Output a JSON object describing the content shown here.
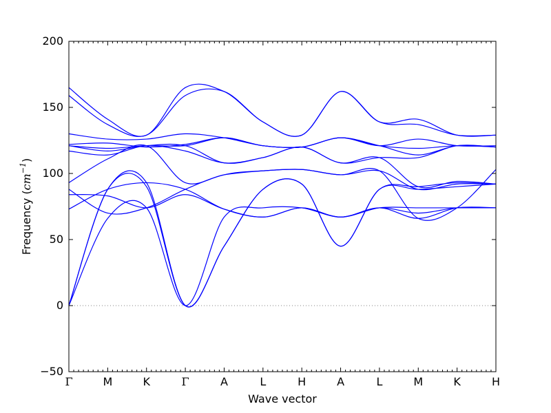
{
  "chart_data": {
    "type": "line",
    "xlabel": "Wave vector",
    "ylabel": {
      "text": "Frequency",
      "unit_open": " (",
      "unit_base": "cm",
      "unit_exp": "−1",
      "unit_close": ")"
    },
    "ylim": [
      -50,
      200
    ],
    "yticks": [
      {
        "value": -50,
        "label": "−50"
      },
      {
        "value": 0,
        "label": "0"
      },
      {
        "value": 50,
        "label": "50"
      },
      {
        "value": 100,
        "label": "100"
      },
      {
        "value": 150,
        "label": "150"
      },
      {
        "value": 200,
        "label": "200"
      }
    ],
    "high_symmetry_points": [
      "Γ",
      "M",
      "K",
      "Γ",
      "A",
      "L",
      "H",
      "A",
      "L",
      "M",
      "K",
      "H"
    ],
    "grid": false,
    "legend": "none",
    "zero_line": {
      "value": 0,
      "style": "dotted",
      "color": "#808080"
    },
    "line_color": "#0000ff",
    "series": [
      {
        "values": [
          [
            0,
            73
          ],
          [
            1,
            88
          ],
          [
            2,
            93
          ],
          [
            3,
            88
          ],
          [
            4,
            73
          ],
          [
            5,
            67
          ],
          [
            6,
            74
          ],
          [
            7,
            67
          ],
          [
            8,
            74
          ],
          [
            9,
            70
          ],
          [
            10,
            74
          ],
          [
            11,
            74
          ]
        ]
      },
      {
        "values": [
          [
            0,
            84
          ],
          [
            1,
            83
          ],
          [
            2,
            74
          ],
          [
            3,
            84
          ],
          [
            4,
            73
          ],
          [
            5,
            67
          ],
          [
            6,
            74
          ],
          [
            7,
            67
          ],
          [
            8,
            74
          ],
          [
            9,
            74
          ],
          [
            10,
            74
          ],
          [
            11,
            74
          ]
        ]
      },
      {
        "values": [
          [
            0,
            88
          ],
          [
            1,
            70
          ],
          [
            2,
            74
          ],
          [
            3,
            88
          ],
          [
            4,
            99
          ],
          [
            5,
            102
          ],
          [
            6,
            103
          ],
          [
            7,
            99
          ],
          [
            8,
            102
          ],
          [
            9,
            66
          ],
          [
            10,
            74
          ],
          [
            11,
            103
          ]
        ]
      },
      {
        "values": [
          [
            0,
            93
          ],
          [
            1,
            111
          ],
          [
            2,
            121
          ],
          [
            3,
            93
          ],
          [
            4,
            99
          ],
          [
            5,
            102
          ],
          [
            6,
            103
          ],
          [
            7,
            99
          ],
          [
            8,
            102
          ],
          [
            9,
            88
          ],
          [
            10,
            92
          ],
          [
            11,
            92
          ]
        ]
      },
      {
        "values": [
          [
            0,
            117
          ],
          [
            1,
            114
          ],
          [
            2,
            121
          ],
          [
            3,
            117
          ],
          [
            4,
            108
          ],
          [
            5,
            112
          ],
          [
            6,
            120
          ],
          [
            7,
            108
          ],
          [
            8,
            112
          ],
          [
            9,
            90
          ],
          [
            10,
            94
          ],
          [
            11,
            92
          ]
        ]
      },
      {
        "values": [
          [
            0,
            121
          ],
          [
            1,
            117
          ],
          [
            2,
            121
          ],
          [
            3,
            121
          ],
          [
            4,
            108
          ],
          [
            5,
            112
          ],
          [
            6,
            120
          ],
          [
            7,
            108
          ],
          [
            8,
            112
          ],
          [
            9,
            112
          ],
          [
            10,
            121
          ],
          [
            11,
            120
          ]
        ]
      },
      {
        "values": [
          [
            0,
            121
          ],
          [
            1,
            119
          ],
          [
            2,
            121
          ],
          [
            3,
            121
          ],
          [
            4,
            127
          ],
          [
            5,
            121
          ],
          [
            6,
            120
          ],
          [
            7,
            127
          ],
          [
            8,
            121
          ],
          [
            9,
            114
          ],
          [
            10,
            121
          ],
          [
            11,
            120
          ]
        ]
      },
      {
        "values": [
          [
            0,
            122
          ],
          [
            1,
            123
          ],
          [
            2,
            120
          ],
          [
            3,
            122
          ],
          [
            4,
            127
          ],
          [
            5,
            121
          ],
          [
            6,
            120
          ],
          [
            7,
            127
          ],
          [
            8,
            121
          ],
          [
            9,
            119
          ],
          [
            10,
            121
          ],
          [
            11,
            120
          ]
        ]
      },
      {
        "values": [
          [
            0,
            130
          ],
          [
            1,
            126
          ],
          [
            2,
            126
          ],
          [
            3,
            130
          ],
          [
            4,
            127
          ],
          [
            5,
            121
          ],
          [
            6,
            120
          ],
          [
            7,
            127
          ],
          [
            8,
            121
          ],
          [
            9,
            126
          ],
          [
            10,
            121
          ],
          [
            11,
            121
          ]
        ]
      },
      {
        "values": [
          [
            0,
            159
          ],
          [
            1,
            137
          ],
          [
            2,
            129
          ],
          [
            3,
            159
          ],
          [
            4,
            162
          ],
          [
            5,
            139
          ],
          [
            6,
            129
          ],
          [
            7,
            162
          ],
          [
            8,
            139
          ],
          [
            9,
            137
          ],
          [
            10,
            129
          ],
          [
            11,
            129
          ]
        ]
      },
      {
        "values": [
          [
            0,
            165
          ],
          [
            1,
            141
          ],
          [
            2,
            129
          ],
          [
            3,
            165
          ],
          [
            4,
            162
          ],
          [
            5,
            139
          ],
          [
            6,
            129
          ],
          [
            7,
            162
          ],
          [
            8,
            139
          ],
          [
            9,
            141
          ],
          [
            10,
            129
          ],
          [
            11,
            129
          ]
        ]
      },
      {
        "values": [
          [
            0,
            0
          ],
          [
            1,
            88
          ],
          [
            2,
            93
          ],
          [
            3,
            0
          ],
          [
            4,
            45
          ],
          [
            5,
            88
          ],
          [
            6,
            92
          ],
          [
            7,
            45
          ],
          [
            8,
            88
          ],
          [
            9,
            90
          ],
          [
            10,
            93
          ],
          [
            11,
            92
          ]
        ]
      },
      {
        "values": [
          [
            0,
            0
          ],
          [
            1,
            88
          ],
          [
            2,
            90
          ],
          [
            3,
            0
          ],
          [
            4,
            45
          ],
          [
            5,
            88
          ],
          [
            6,
            92
          ],
          [
            7,
            45
          ],
          [
            8,
            88
          ],
          [
            9,
            88
          ],
          [
            10,
            90
          ],
          [
            11,
            92
          ]
        ]
      },
      {
        "values": [
          [
            0,
            0
          ],
          [
            1,
            66
          ],
          [
            2,
            74
          ],
          [
            3,
            0
          ],
          [
            4,
            67
          ],
          [
            5,
            74
          ],
          [
            6,
            74
          ],
          [
            7,
            67
          ],
          [
            8,
            74
          ],
          [
            9,
            66
          ],
          [
            10,
            74
          ],
          [
            11,
            74
          ]
        ]
      }
    ]
  }
}
